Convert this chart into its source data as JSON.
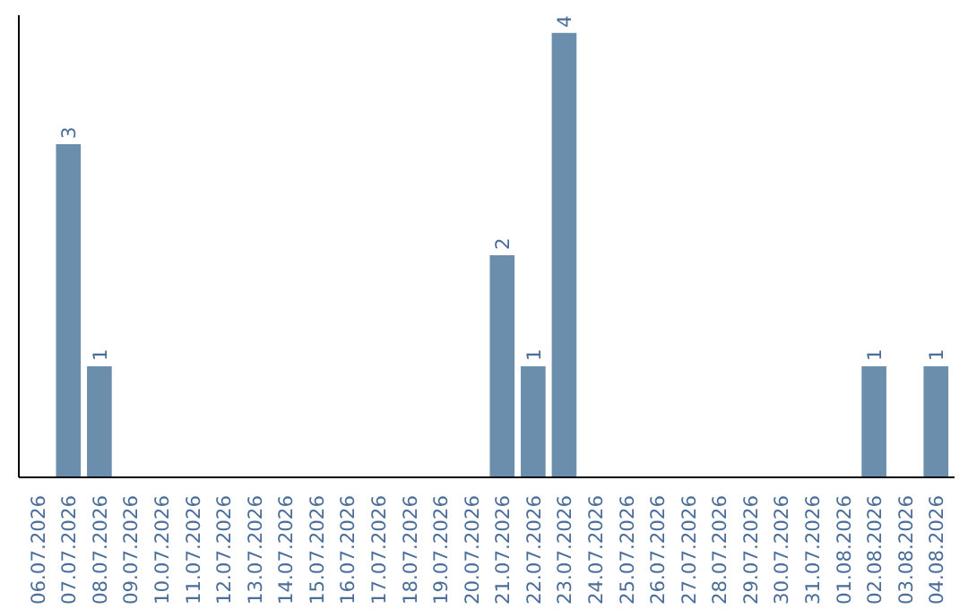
{
  "chart_data": {
    "type": "bar",
    "categories": [
      "06.07.2026",
      "07.07.2026",
      "08.07.2026",
      "09.07.2026",
      "10.07.2026",
      "11.07.2026",
      "12.07.2026",
      "13.07.2026",
      "14.07.2026",
      "15.07.2026",
      "16.07.2026",
      "17.07.2026",
      "18.07.2026",
      "19.07.2026",
      "20.07.2026",
      "21.07.2026",
      "22.07.2026",
      "23.07.2026",
      "24.07.2026",
      "25.07.2026",
      "26.07.2026",
      "27.07.2026",
      "28.07.2026",
      "29.07.2026",
      "30.07.2026",
      "31.07.2026",
      "01.08.2026",
      "02.08.2026",
      "03.08.2026",
      "04.08.2026"
    ],
    "values": [
      0,
      3,
      1,
      0,
      0,
      0,
      0,
      0,
      0,
      0,
      0,
      0,
      0,
      0,
      0,
      2,
      1,
      4,
      0,
      0,
      0,
      0,
      0,
      0,
      0,
      0,
      0,
      1,
      0,
      1
    ],
    "value_labels": [
      null,
      "3",
      "1",
      null,
      null,
      null,
      null,
      null,
      null,
      null,
      null,
      null,
      null,
      null,
      null,
      "2",
      "1",
      "4",
      null,
      null,
      null,
      null,
      null,
      null,
      null,
      null,
      null,
      "1",
      null,
      "1"
    ],
    "color": "#6c8ead",
    "tick_labels": "x"
  }
}
